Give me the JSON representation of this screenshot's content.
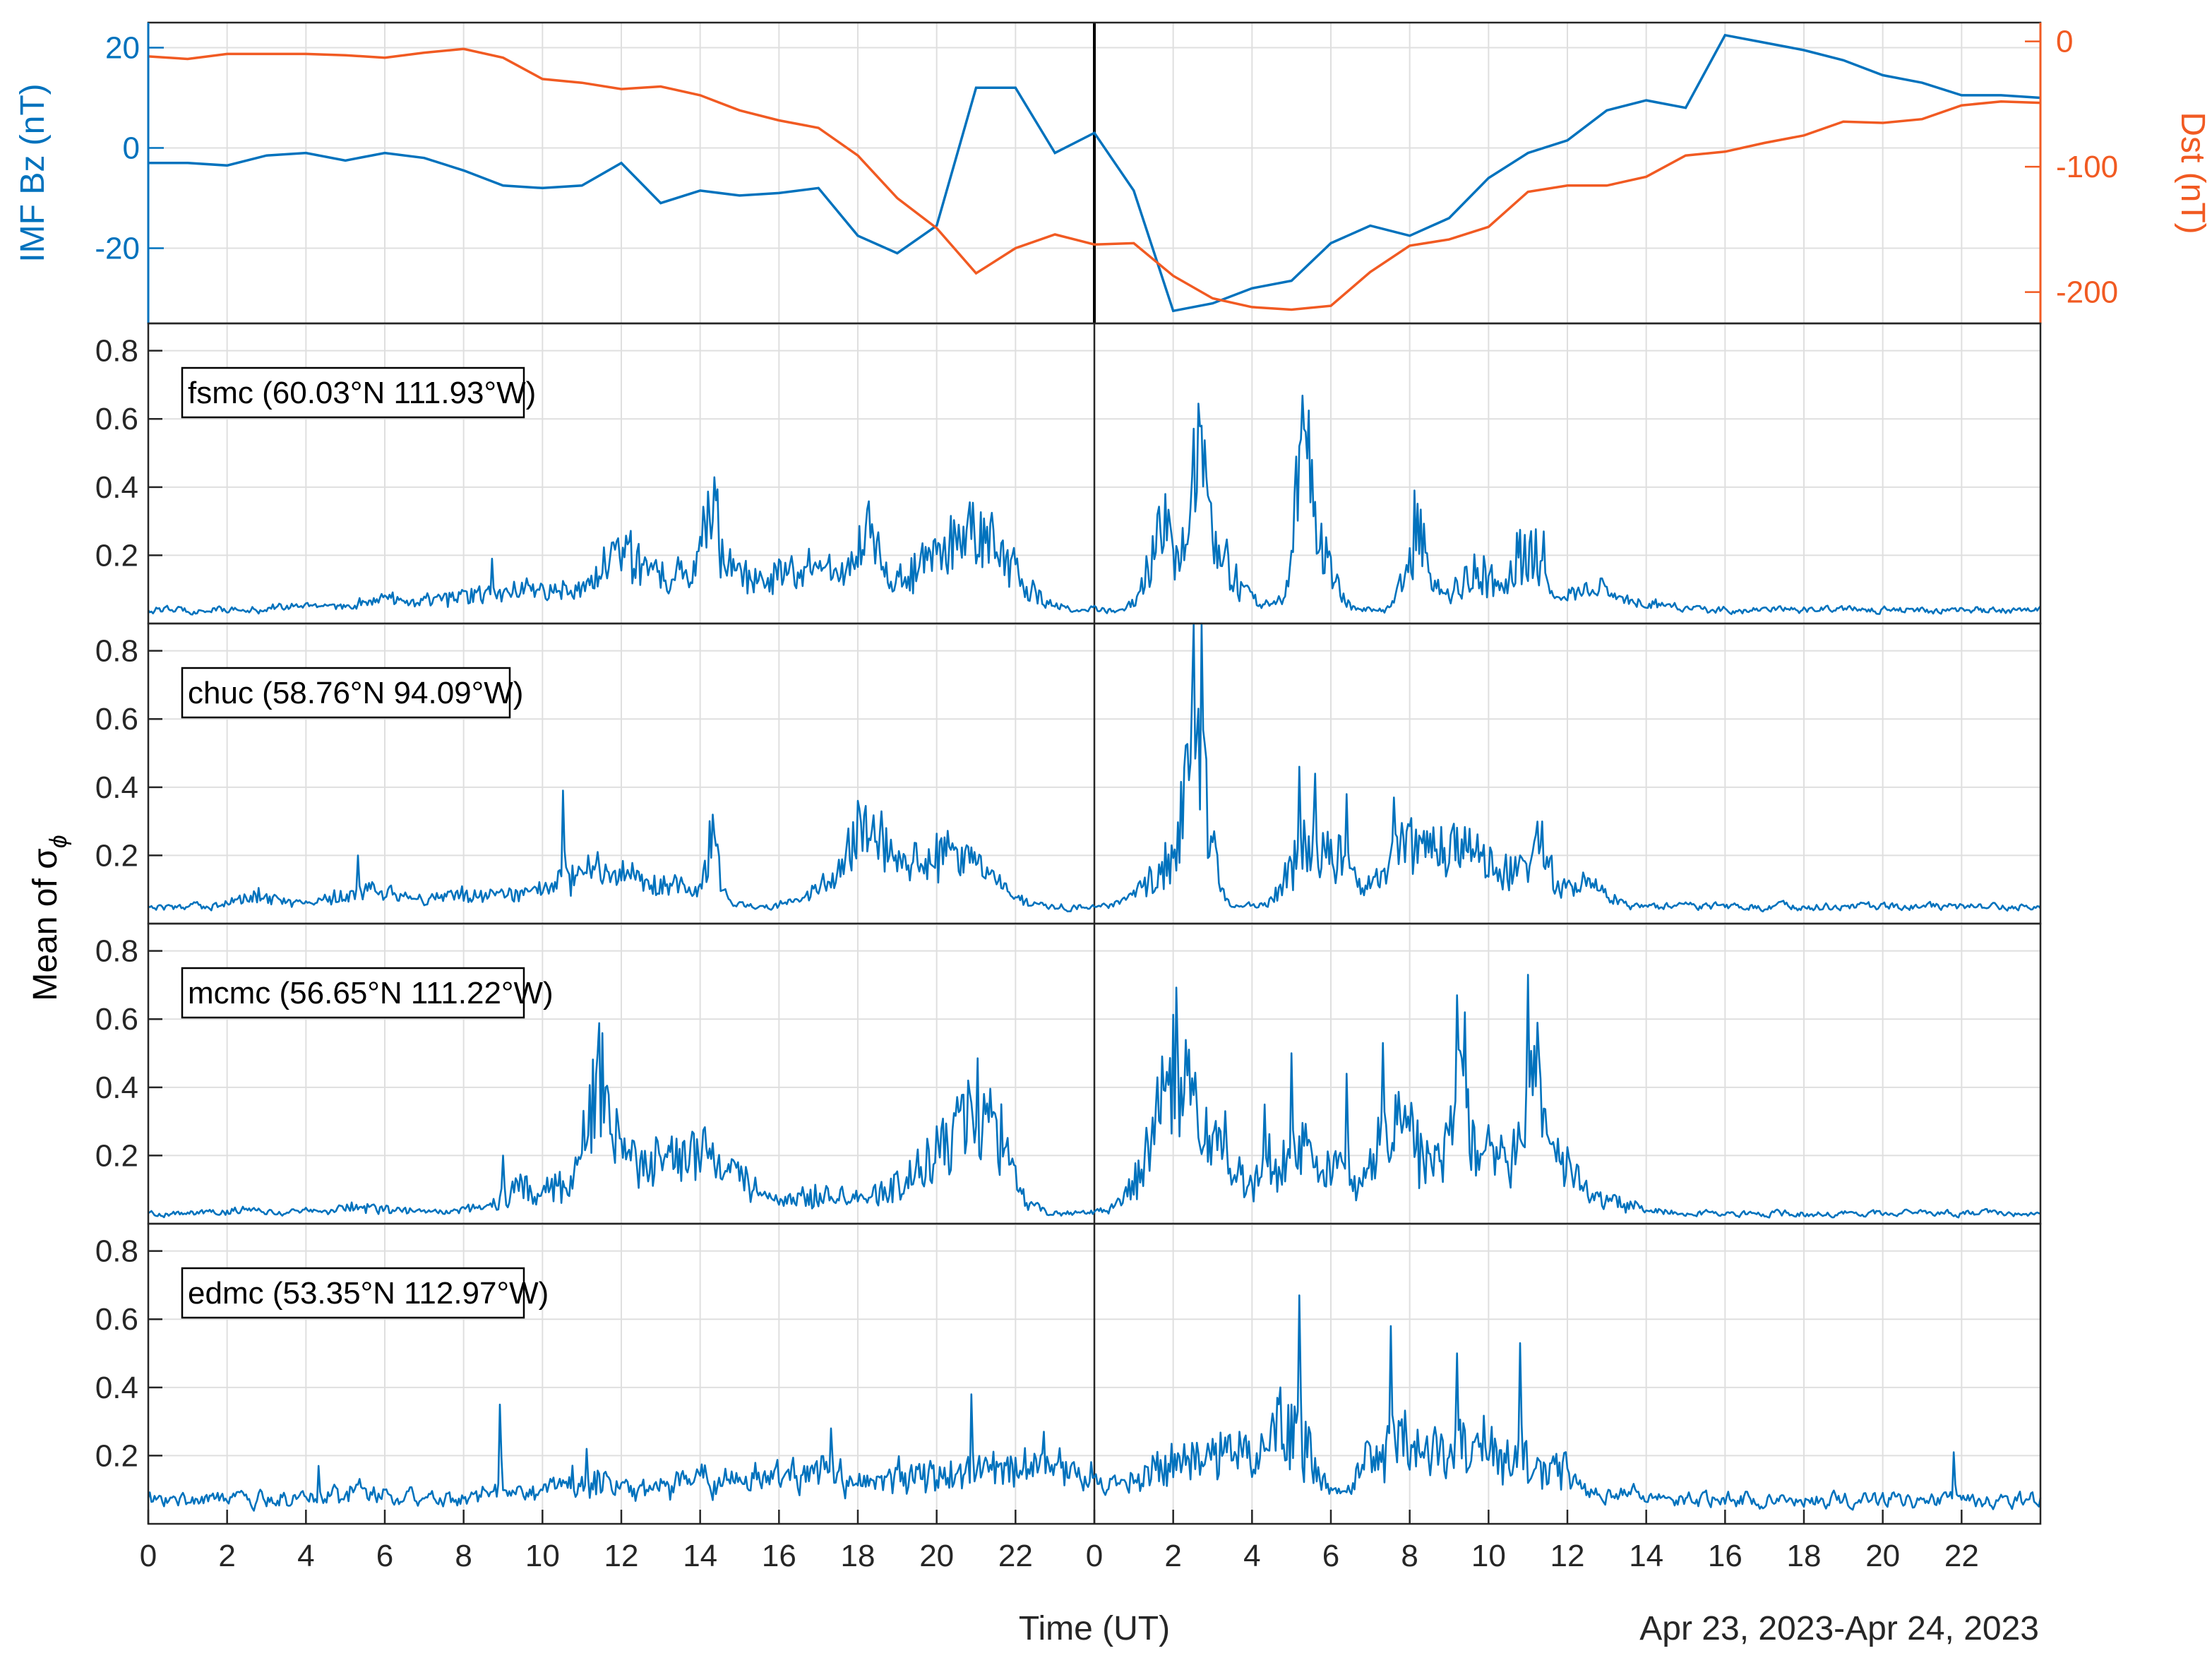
{
  "colors": {
    "bz": "#0072BD",
    "dst": "#F15A22",
    "trace": "#0072BD",
    "axis": "#262626",
    "grid": "#dfdfdf"
  },
  "chart_data": {
    "type": "line",
    "xlabel": "Time (UT)",
    "date_range_label": "Apr 23, 2023-Apr 24, 2023",
    "x_tick_labels": [
      "0",
      "2",
      "4",
      "6",
      "8",
      "10",
      "12",
      "14",
      "16",
      "18",
      "20",
      "22",
      "0",
      "2",
      "4",
      "6",
      "8",
      "10",
      "12",
      "14",
      "16",
      "18",
      "20",
      "22"
    ],
    "x_unit": "hours since Apr 23, 2023 00:00 UT",
    "xlim": [
      0,
      48
    ],
    "top_panel": {
      "left_axis": {
        "label": "IMF Bz (nT)",
        "ylim": [
          -35,
          25
        ],
        "ticks": [
          20,
          0,
          -20
        ],
        "tick_labels": [
          "20",
          "0",
          "-20"
        ]
      },
      "right_axis": {
        "label": "Dst (nT)",
        "ylim": [
          -225,
          15
        ],
        "ticks": [
          0,
          -100,
          -200
        ],
        "tick_labels": [
          "0",
          "-100",
          "-200"
        ]
      },
      "series": [
        {
          "name": "IMF Bz",
          "axis": "left",
          "x": [
            0,
            1,
            2,
            3,
            4,
            5,
            6,
            7,
            8,
            9,
            10,
            11,
            12,
            13,
            14,
            15,
            16,
            17,
            18,
            19,
            20,
            21,
            22,
            23,
            24,
            25,
            26,
            27,
            28,
            29,
            30,
            31,
            32,
            33,
            34,
            35,
            36,
            37,
            38,
            39,
            40,
            41,
            42,
            43,
            44,
            45,
            46,
            47,
            48
          ],
          "y": [
            -3,
            -3,
            -3.5,
            -1.5,
            -1,
            -2.5,
            -1,
            -2,
            -4.5,
            -7.5,
            -8,
            -7.5,
            -3,
            -11,
            -8.5,
            -9.5,
            -9,
            -8,
            -17.5,
            -21,
            -15.5,
            12,
            12,
            -1,
            3,
            -8.5,
            -32.5,
            -31,
            -28,
            -26.5,
            -19,
            -15.5,
            -17.5,
            -14,
            -6,
            -1,
            1.5,
            7.5,
            9.5,
            8,
            22.5,
            21,
            19.5,
            17.5,
            14.5,
            13,
            10.5,
            10.5,
            10
          ]
        },
        {
          "name": "Dst",
          "axis": "right",
          "x": [
            0,
            1,
            2,
            3,
            4,
            5,
            6,
            7,
            8,
            9,
            10,
            11,
            12,
            13,
            14,
            15,
            16,
            17,
            18,
            19,
            20,
            21,
            22,
            23,
            24,
            25,
            26,
            27,
            28,
            29,
            30,
            31,
            32,
            33,
            34,
            35,
            36,
            37,
            38,
            39,
            40,
            41,
            42,
            43,
            44,
            45,
            46,
            47,
            48
          ],
          "y": [
            -12,
            -14,
            -10,
            -10,
            -10,
            -11,
            -13,
            -9,
            -6,
            -13,
            -30,
            -33,
            -38,
            -36,
            -43,
            -55,
            -63,
            -69,
            -91,
            -125,
            -149,
            -185,
            -165,
            -154,
            -162,
            -161,
            -187,
            -205,
            -212,
            -214,
            -211,
            -184,
            -163,
            -158,
            -148,
            -120,
            -115,
            -115,
            -108,
            -91,
            -88,
            -81,
            -75,
            -64,
            -65,
            -62,
            -51,
            -48,
            -49
          ]
        }
      ]
    },
    "station_panels": {
      "ylabel": "Mean of σ",
      "ylabel_subscript": "ϕ",
      "ylim": [
        0,
        0.88
      ],
      "y_ticks": [
        0.2,
        0.4,
        0.6,
        0.8
      ],
      "y_tick_labels": [
        "0.2",
        "0.4",
        "0.6",
        "0.8"
      ],
      "stations": [
        {
          "label": "fsmc (60.03°N 111.93°W)",
          "baseline": 0.04,
          "noise": 0.008,
          "bursts": [
            [
              3.5,
              0.5,
              0.01
            ],
            [
              5.8,
              0.8,
              0.02
            ],
            [
              8.5,
              1.5,
              0.04
            ],
            [
              10.5,
              1,
              0.04
            ],
            [
              12,
              0.5,
              0.12
            ],
            [
              13.5,
              1,
              0.07
            ],
            [
              14.3,
              0.2,
              0.2
            ],
            [
              15.5,
              1.5,
              0.08
            ],
            [
              17.5,
              1,
              0.08
            ],
            [
              18.3,
              0.2,
              0.14
            ],
            [
              20.3,
              1,
              0.12
            ],
            [
              21.2,
              0.8,
              0.14
            ],
            [
              25.8,
              0.4,
              0.2
            ],
            [
              26.7,
              0.2,
              0.3
            ],
            [
              27,
              0.6,
              0.15
            ],
            [
              29.3,
              0.2,
              0.3
            ],
            [
              29.6,
              0.4,
              0.2
            ],
            [
              32.2,
              0.3,
              0.2
            ],
            [
              33.8,
              0.6,
              0.1
            ],
            [
              35,
              0.3,
              0.18
            ],
            [
              36.5,
              0.5,
              0.05
            ],
            [
              37.5,
              1,
              0.02
            ]
          ],
          "spikes": [
            [
              8.7,
              0.19
            ],
            [
              12.1,
              0.21
            ],
            [
              14.3,
              0.3
            ],
            [
              18.2,
              0.23
            ],
            [
              21.1,
              0.3
            ],
            [
              25.8,
              0.38
            ],
            [
              26.7,
              0.58
            ],
            [
              29.3,
              0.57
            ],
            [
              29.5,
              0.48
            ],
            [
              32.1,
              0.39
            ],
            [
              34.9,
              0.26
            ],
            [
              35.4,
              0.27
            ]
          ]
        },
        {
          "label": "chuc (58.76°N 94.09°W)",
          "baseline": 0.05,
          "noise": 0.008,
          "bursts": [
            [
              2.8,
              0.6,
              0.03
            ],
            [
              5.5,
              0.8,
              0.04
            ],
            [
              8,
              1,
              0.03
            ],
            [
              10.5,
              1,
              0.05
            ],
            [
              11.5,
              0.8,
              0.06
            ],
            [
              13,
              0.8,
              0.06
            ],
            [
              14.3,
              0.2,
              0.15
            ],
            [
              17.5,
              0.7,
              0.06
            ],
            [
              18.2,
              0.4,
              0.16
            ],
            [
              19,
              0.6,
              0.08
            ],
            [
              20.3,
              0.7,
              0.12
            ],
            [
              21.2,
              0.6,
              0.06
            ],
            [
              25.8,
              0.5,
              0.1
            ],
            [
              26.6,
              0.3,
              0.45
            ],
            [
              29.3,
              0.4,
              0.15
            ],
            [
              30.2,
              0.4,
              0.12
            ],
            [
              31.8,
              0.5,
              0.1
            ],
            [
              32.8,
              0.8,
              0.1
            ],
            [
              34,
              1.3,
              0.1
            ],
            [
              35.3,
              0.2,
              0.12
            ],
            [
              36.5,
              0.5,
              0.04
            ]
          ],
          "spikes": [
            [
              5.3,
              0.2
            ],
            [
              10.5,
              0.39
            ],
            [
              11.4,
              0.21
            ],
            [
              14.3,
              0.32
            ],
            [
              18.2,
              0.33
            ],
            [
              20.2,
              0.25
            ],
            [
              26.5,
              0.88
            ],
            [
              26.7,
              0.88
            ],
            [
              29.2,
              0.46
            ],
            [
              29.6,
              0.44
            ],
            [
              30.4,
              0.38
            ],
            [
              31.6,
              0.37
            ],
            [
              32.8,
              0.2
            ],
            [
              33.5,
              0.2
            ],
            [
              34.8,
              0.2
            ],
            [
              35.2,
              0.26
            ]
          ]
        },
        {
          "label": "mcmc (56.65°N 111.22°W)",
          "baseline": 0.03,
          "noise": 0.007,
          "bursts": [
            [
              2.5,
              0.4,
              0.01
            ],
            [
              5.5,
              0.8,
              0.02
            ],
            [
              10,
              1,
              0.08
            ],
            [
              11.4,
              0.3,
              0.25
            ],
            [
              11.8,
              0.4,
              0.12
            ],
            [
              13,
              0.8,
              0.1
            ],
            [
              14,
              0.8,
              0.12
            ],
            [
              15,
              0.5,
              0.05
            ],
            [
              17,
              0.8,
              0.05
            ],
            [
              19.5,
              1,
              0.08
            ],
            [
              20.8,
              0.8,
              0.18
            ],
            [
              21.3,
              0.4,
              0.15
            ],
            [
              25.8,
              0.6,
              0.22
            ],
            [
              26.2,
              0.4,
              0.25
            ],
            [
              27.3,
              0.5,
              0.15
            ],
            [
              28.5,
              0.3,
              0.12
            ],
            [
              29.3,
              0.4,
              0.15
            ],
            [
              30.2,
              0.4,
              0.1
            ],
            [
              31.5,
              0.4,
              0.2
            ],
            [
              32.5,
              0.8,
              0.15
            ],
            [
              33.3,
              0.2,
              0.25
            ],
            [
              34.2,
              0.4,
              0.18
            ],
            [
              35.2,
              0.3,
              0.3
            ],
            [
              35.8,
              0.5,
              0.12
            ],
            [
              37,
              0.8,
              0.03
            ]
          ],
          "spikes": [
            [
              9,
              0.2
            ],
            [
              11.4,
              0.5
            ],
            [
              13.8,
              0.27
            ],
            [
              14.1,
              0.27
            ],
            [
              20.8,
              0.42
            ],
            [
              26.2,
              0.38
            ],
            [
              27.3,
              0.33
            ],
            [
              28.3,
              0.35
            ],
            [
              29,
              0.5
            ],
            [
              30.4,
              0.44
            ],
            [
              31.3,
              0.53
            ],
            [
              33.2,
              0.67
            ],
            [
              33.4,
              0.62
            ],
            [
              35,
              0.73
            ]
          ]
        },
        {
          "label": "edmc (53.35°N 112.97°W)",
          "baseline": 0.07,
          "noise": 0.018,
          "bursts": [
            [
              5,
              1,
              0.02
            ],
            [
              9,
              1,
              0.02
            ],
            [
              11,
              0.6,
              0.05
            ],
            [
              13,
              1,
              0.04
            ],
            [
              15,
              1,
              0.05
            ],
            [
              17,
              1,
              0.06
            ],
            [
              19,
              1,
              0.05
            ],
            [
              21,
              1,
              0.07
            ],
            [
              22.5,
              1,
              0.06
            ],
            [
              24,
              1,
              0.04
            ],
            [
              26,
              0.6,
              0.1
            ],
            [
              27.5,
              0.8,
              0.12
            ],
            [
              29,
              0.5,
              0.2
            ],
            [
              31.5,
              0.6,
              0.15
            ],
            [
              33,
              0.8,
              0.15
            ],
            [
              34.5,
              0.6,
              0.12
            ],
            [
              35.8,
              0.4,
              0.08
            ],
            [
              37.5,
              1,
              0.01
            ]
          ],
          "spikes": [
            [
              4.3,
              0.17
            ],
            [
              8.9,
              0.35
            ],
            [
              11.1,
              0.22
            ],
            [
              17.3,
              0.28
            ],
            [
              20.9,
              0.38
            ],
            [
              22.7,
              0.27
            ],
            [
              28.7,
              0.4
            ],
            [
              29,
              0.35
            ],
            [
              29.2,
              0.67
            ],
            [
              31.5,
              0.58
            ],
            [
              33.2,
              0.5
            ],
            [
              34.8,
              0.53
            ],
            [
              35.8,
              0.18
            ],
            [
              45.8,
              0.21
            ]
          ]
        }
      ]
    }
  }
}
